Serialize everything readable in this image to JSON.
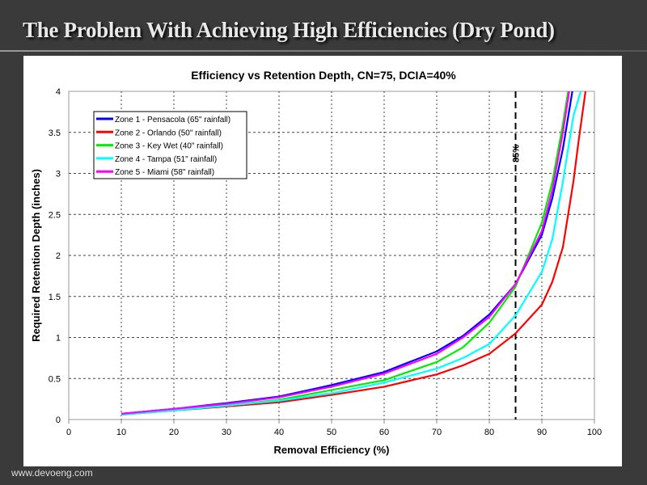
{
  "slide": {
    "title": "The Problem With Achieving High Efficiencies (Dry Pond)",
    "footer": "www.devoeng.com"
  },
  "chart_data": {
    "type": "line",
    "title": "Efficiency vs Retention Depth, CN=75, DCIA=40%",
    "xlabel": "Removal Efficiency (%)",
    "ylabel": "Required Retention Depth (inches)",
    "xlim": [
      0,
      100
    ],
    "ylim": [
      0,
      4
    ],
    "xticks": [
      0,
      10,
      20,
      30,
      40,
      50,
      60,
      70,
      80,
      90,
      100
    ],
    "yticks": [
      0,
      0.5,
      1,
      1.5,
      2,
      2.5,
      3,
      3.5,
      4
    ],
    "grid": true,
    "legend_position": "top-left",
    "annotation": {
      "label": "85%",
      "x": 85
    },
    "series": [
      {
        "name": "Zone 1 - Pensacola (65\" rainfall)",
        "color": "#0000ff",
        "points": [
          [
            10,
            0.07
          ],
          [
            20,
            0.13
          ],
          [
            30,
            0.2
          ],
          [
            40,
            0.28
          ],
          [
            50,
            0.42
          ],
          [
            60,
            0.58
          ],
          [
            70,
            0.83
          ],
          [
            75,
            1.02
          ],
          [
            80,
            1.28
          ],
          [
            85,
            1.65
          ],
          [
            90,
            2.25
          ],
          [
            92,
            2.7
          ],
          [
            94,
            3.3
          ],
          [
            95.8,
            4
          ]
        ]
      },
      {
        "name": "Zone 2 - Orlando (50\" rainfall)",
        "color": "#ff0000",
        "points": [
          [
            10,
            0.06
          ],
          [
            20,
            0.11
          ],
          [
            30,
            0.16
          ],
          [
            40,
            0.21
          ],
          [
            50,
            0.3
          ],
          [
            60,
            0.4
          ],
          [
            70,
            0.55
          ],
          [
            75,
            0.66
          ],
          [
            80,
            0.8
          ],
          [
            85,
            1.05
          ],
          [
            90,
            1.4
          ],
          [
            92,
            1.68
          ],
          [
            94,
            2.1
          ],
          [
            96,
            2.9
          ],
          [
            97,
            3.4
          ],
          [
            98.3,
            4
          ]
        ]
      },
      {
        "name": "Zone 3 - Key Wet (40\" rainfall)",
        "color": "#00ee00",
        "points": [
          [
            10,
            0.06
          ],
          [
            20,
            0.11
          ],
          [
            30,
            0.17
          ],
          [
            40,
            0.24
          ],
          [
            50,
            0.36
          ],
          [
            60,
            0.48
          ],
          [
            70,
            0.7
          ],
          [
            75,
            0.88
          ],
          [
            80,
            1.18
          ],
          [
            85,
            1.62
          ],
          [
            90,
            2.4
          ],
          [
            92,
            2.9
          ],
          [
            94,
            3.6
          ],
          [
            95,
            4
          ]
        ]
      },
      {
        "name": "Zone 4 - Tampa (51\" rainfall)",
        "color": "#00ffff",
        "points": [
          [
            10,
            0.06
          ],
          [
            20,
            0.11
          ],
          [
            30,
            0.17
          ],
          [
            40,
            0.23
          ],
          [
            50,
            0.32
          ],
          [
            60,
            0.45
          ],
          [
            70,
            0.62
          ],
          [
            75,
            0.75
          ],
          [
            80,
            0.92
          ],
          [
            85,
            1.27
          ],
          [
            90,
            1.8
          ],
          [
            92,
            2.2
          ],
          [
            94,
            2.9
          ],
          [
            96,
            3.7
          ],
          [
            97.4,
            4
          ]
        ]
      },
      {
        "name": "Zone 5 - Miami (58\" rainfall)",
        "color": "#ff00ff",
        "points": [
          [
            10,
            0.07
          ],
          [
            20,
            0.13
          ],
          [
            30,
            0.19
          ],
          [
            40,
            0.27
          ],
          [
            50,
            0.4
          ],
          [
            60,
            0.56
          ],
          [
            70,
            0.8
          ],
          [
            75,
            1.0
          ],
          [
            80,
            1.25
          ],
          [
            85,
            1.65
          ],
          [
            90,
            2.3
          ],
          [
            92,
            2.8
          ],
          [
            94,
            3.5
          ],
          [
            95.2,
            4
          ]
        ]
      }
    ]
  }
}
